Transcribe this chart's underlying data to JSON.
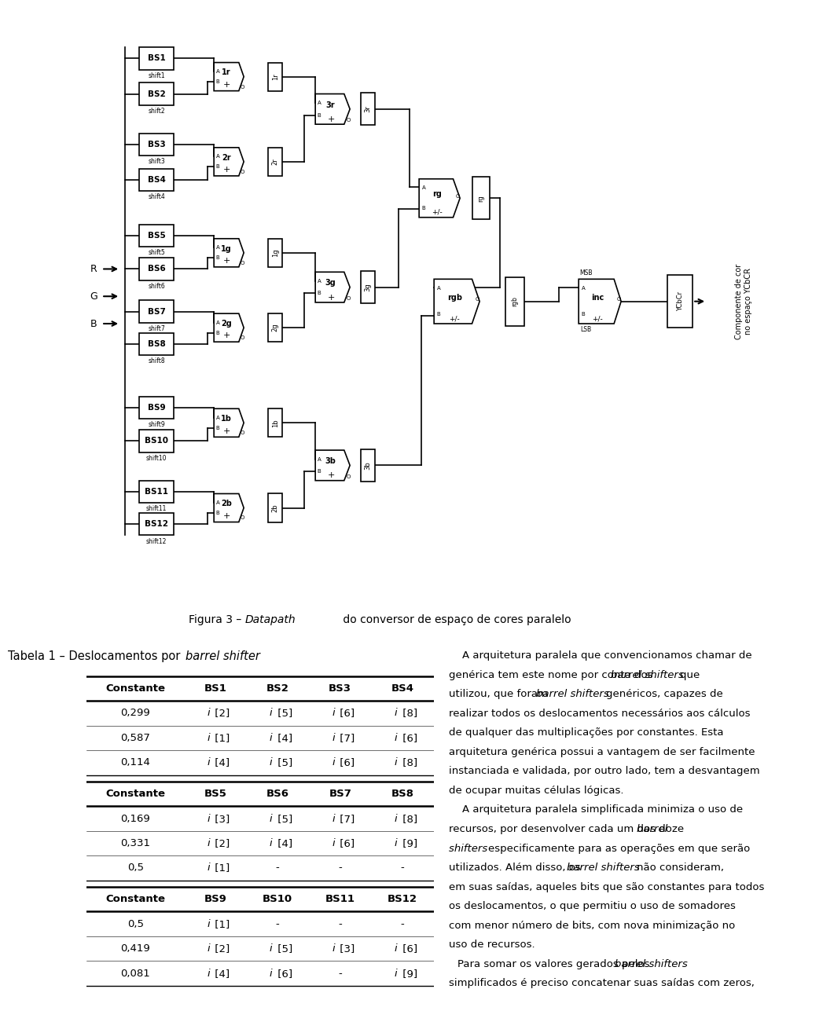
{
  "figure_caption_normal": "Figura 3 – ",
  "figure_caption_italic": "Datapath",
  "figure_caption_end": " do conversor de espaço de cores paralelo",
  "table_title_normal": "Tabela 1 – Deslocamentos por ",
  "table_title_italic": "barrel shifter",
  "table_sections": [
    {
      "headers": [
        "Constante",
        "BS1",
        "BS2",
        "BS3",
        "BS4"
      ],
      "rows": [
        [
          "0,299",
          "i [2]",
          "i [5]",
          "i [6]",
          "i [8]"
        ],
        [
          "0,587",
          "i [1]",
          "i [4]",
          "i [7]",
          "i [6]"
        ],
        [
          "0,114",
          "i [4]",
          "i [5]",
          "i [6]",
          "i [8]"
        ]
      ]
    },
    {
      "headers": [
        "Constante",
        "BS5",
        "BS6",
        "BS7",
        "BS8"
      ],
      "rows": [
        [
          "0,169",
          "i [3]",
          "i [5]",
          "i [7]",
          "i [8]"
        ],
        [
          "0,331",
          "i [2]",
          "i [4]",
          "i [6]",
          "i [9]"
        ],
        [
          "0,5",
          "i [1]",
          "-",
          "-",
          "-"
        ]
      ]
    },
    {
      "headers": [
        "Constante",
        "BS9",
        "BS10",
        "BS11",
        "BS12"
      ],
      "rows": [
        [
          "0,5",
          "i [1]",
          "-",
          "-",
          "-"
        ],
        [
          "0,419",
          "i [2]",
          "i [5]",
          "i [3]",
          "i [6]"
        ],
        [
          "0,081",
          "i [4]",
          "i [6]",
          "-",
          "i [9]"
        ]
      ]
    }
  ],
  "right_text": [
    "    A arquitetura paralela que convencionamos chamar de",
    "genérica tem este nome por conta dos barrel shifters que",
    "utilizou, que foram barrel shifters genéricos, capazes de",
    "realizar todos os deslocamentos necessários aos cálculos",
    "de qualquer das multiplicações por constantes. Esta",
    "arquitetura genérica possui a vantagem de ser facilmente",
    "instanciada e validada, por outro lado, tem a desvantagem",
    "de ocupar muitas células lógicas.",
    "    A arquitetura paralela simplificada minimiza o uso de",
    "recursos, por desenvolver cada um dos doze barrel",
    "shifters especificamente para as operações em que serão",
    "utilizados. Além disso, os barrel shifters não consideram,",
    "em suas saídas, aqueles bits que são constantes para todos",
    "os deslocamentos, o que permitiu o uso de somadores",
    "com menor número de bits, com nova minimização no",
    "uso de recursos.",
    "    Para somar os valores gerados pelos barrel shifters",
    "simplificados é preciso concatenar suas saídas com zeros,"
  ],
  "bg_color": "#ffffff",
  "text_color": "#000000",
  "font_size_table": 9.5,
  "font_size_text": 9.5,
  "font_size_title": 10.5,
  "font_size_caption": 10,
  "bs_blocks": [
    [
      "BS1",
      540
    ],
    [
      "BS2",
      505
    ],
    [
      "BS3",
      455
    ],
    [
      "BS4",
      420
    ],
    [
      "BS5",
      365
    ],
    [
      "BS6",
      332
    ],
    [
      "BS7",
      290
    ],
    [
      "BS8",
      258
    ],
    [
      "BS9",
      195
    ],
    [
      "BS10",
      162
    ],
    [
      "BS11",
      112
    ],
    [
      "BS12",
      80
    ]
  ]
}
